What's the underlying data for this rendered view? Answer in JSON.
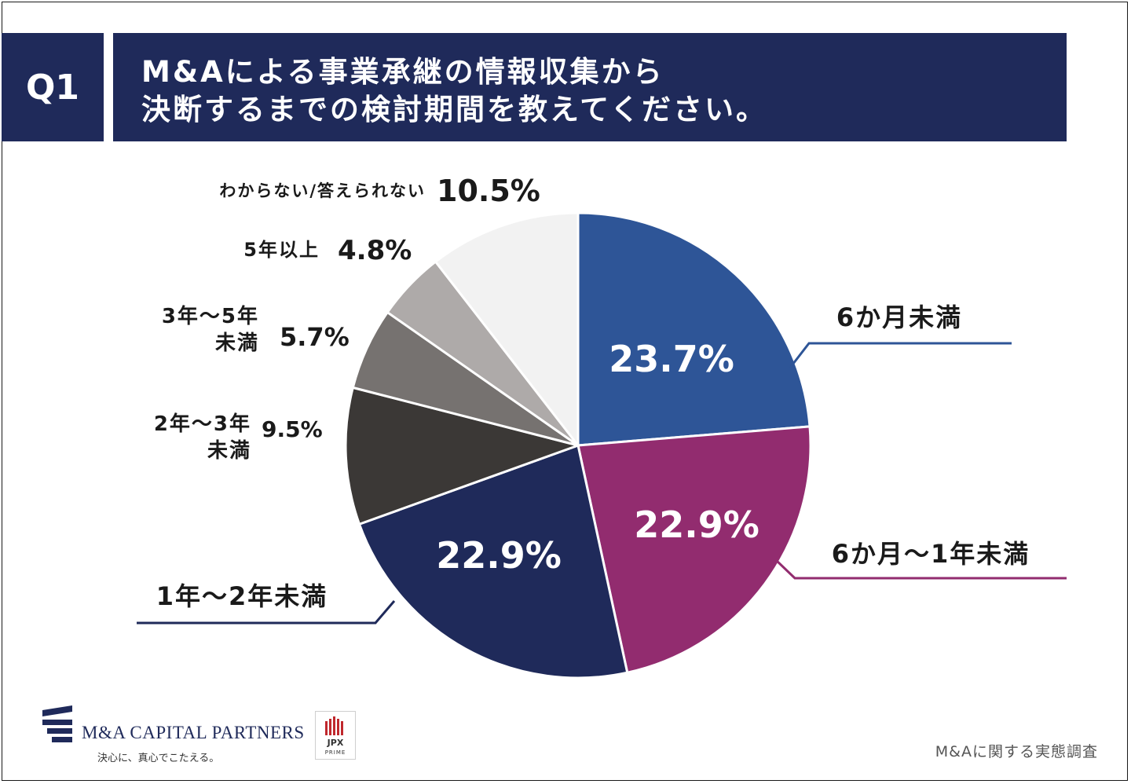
{
  "question": {
    "badge": "Q1",
    "line1": "M&Aによる事業承継の情報収集から",
    "line2": "決断するまでの検討期間を教えてください。"
  },
  "chart_data": {
    "type": "pie",
    "start": "12 o'clock",
    "direction": "clockwise",
    "slices": [
      {
        "label": "6か月未満",
        "value": 23.7,
        "display": "23.7%",
        "color": "#2e5597"
      },
      {
        "label": "6か月～1年未満",
        "value": 22.9,
        "display": "22.9%",
        "color": "#922c6f"
      },
      {
        "label": "1年～2年未満",
        "value": 22.9,
        "display": "22.9%",
        "color": "#1f2a5a"
      },
      {
        "label": "2年～3年未満",
        "value": 9.5,
        "display": "9.5%",
        "color": "#3b3836"
      },
      {
        "label": "3年～5年未満",
        "value": 5.7,
        "display": "5.7%",
        "color": "#767270"
      },
      {
        "label": "5年以上",
        "value": 4.8,
        "display": "4.8%",
        "color": "#aeaaa9"
      },
      {
        "label": "わからない/答えられない",
        "value": 10.5,
        "display": "10.5%",
        "color": "#f2f2f2"
      }
    ]
  },
  "footer": {
    "company": "M&A CAPITAL PARTNERS",
    "tagline": "決心に、真心でこたえる。",
    "jpx": "JPX",
    "jpx_sub": "PRIME",
    "survey": "M&Aに関する実態調査"
  }
}
